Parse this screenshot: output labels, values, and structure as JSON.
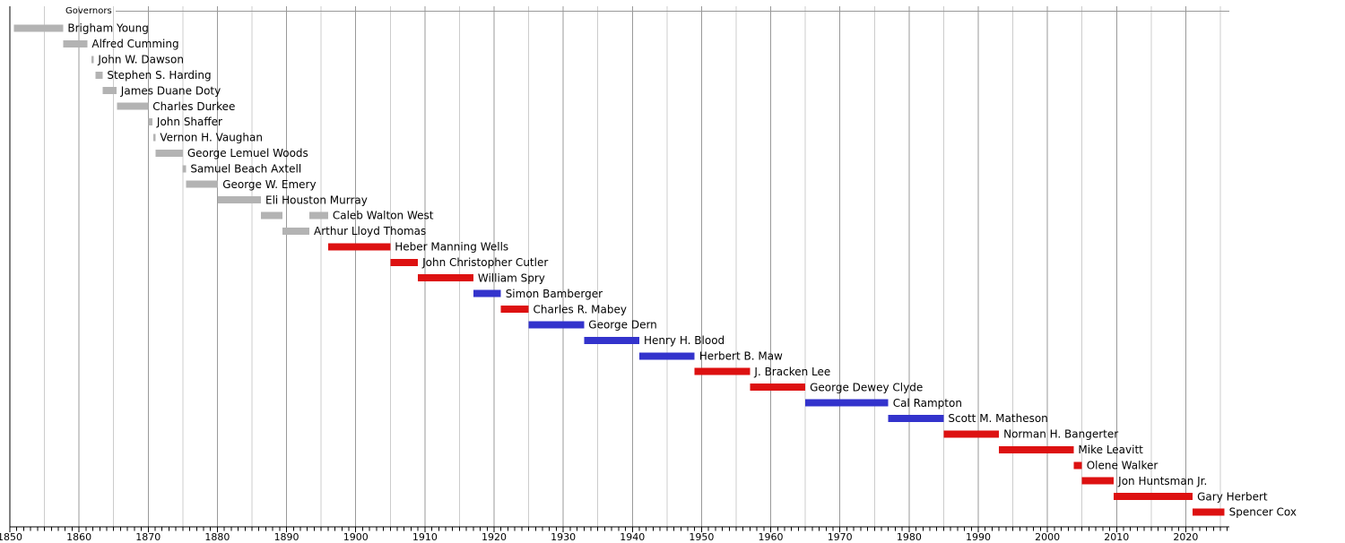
{
  "title": "Governors",
  "chart_data": {
    "type": "bar",
    "subtype": "gantt-timeline",
    "title": "Governors",
    "description_colors": {
      "territorial": "#b3b3b3",
      "republican": "#dd1111",
      "democratic": "#3333cc"
    },
    "grid": {
      "minor_color": "#cccccc",
      "major_color": "#999999",
      "top_line_color": "#999999",
      "axis_color": "#000000",
      "gridline_interval_years": 5,
      "major_gridline_interval_years": 10,
      "minor_tick_interval_years": 1
    },
    "x_axis": {
      "range": [
        1850,
        2026.3
      ],
      "tick_labels": [
        "1850",
        "1860",
        "1870",
        "1880",
        "1890",
        "1900",
        "1910",
        "1920",
        "1930",
        "1940",
        "1950",
        "1960",
        "1970",
        "1980",
        "1990",
        "2000",
        "2010",
        "2020"
      ],
      "tick_label_interval": 10
    },
    "legend": null,
    "governors": [
      {
        "name": "Brigham Young",
        "party": "territorial",
        "periods": [
          [
            1850.6,
            1857.7
          ]
        ]
      },
      {
        "name": "Alfred Cumming",
        "party": "territorial",
        "periods": [
          [
            1857.7,
            1861.2
          ]
        ]
      },
      {
        "name": "John W. Dawson",
        "party": "territorial",
        "periods": [
          [
            1861.8,
            1862.1
          ]
        ]
      },
      {
        "name": "Stephen S. Harding",
        "party": "territorial",
        "periods": [
          [
            1862.4,
            1863.4
          ]
        ]
      },
      {
        "name": "James Duane Doty",
        "party": "territorial",
        "periods": [
          [
            1863.4,
            1865.4
          ]
        ]
      },
      {
        "name": "Charles Durkee",
        "party": "territorial",
        "periods": [
          [
            1865.5,
            1870.0
          ]
        ]
      },
      {
        "name": "John Shaffer",
        "party": "territorial",
        "periods": [
          [
            1870.0,
            1870.6
          ]
        ]
      },
      {
        "name": "Vernon H. Vaughan",
        "party": "territorial",
        "periods": [
          [
            1870.75,
            1871.05
          ]
        ]
      },
      {
        "name": "George Lemuel Woods",
        "party": "territorial",
        "periods": [
          [
            1871.05,
            1875.0
          ]
        ]
      },
      {
        "name": "Samuel Beach Axtell",
        "party": "territorial",
        "periods": [
          [
            1874.95,
            1875.45
          ]
        ]
      },
      {
        "name": "George W. Emery",
        "party": "territorial",
        "periods": [
          [
            1875.45,
            1880.1
          ]
        ]
      },
      {
        "name": "Eli Houston Murray",
        "party": "territorial",
        "periods": [
          [
            1880.1,
            1886.3
          ]
        ]
      },
      {
        "name": "Caleb Walton West",
        "party": "territorial",
        "periods": [
          [
            1886.3,
            1889.4
          ],
          [
            1893.3,
            1896.0
          ]
        ]
      },
      {
        "name": "Arthur Lloyd Thomas",
        "party": "territorial",
        "periods": [
          [
            1889.4,
            1893.3
          ]
        ]
      },
      {
        "name": "Heber Manning Wells",
        "party": "republican",
        "periods": [
          [
            1896.0,
            1905.0
          ]
        ]
      },
      {
        "name": "John Christopher Cutler",
        "party": "republican",
        "periods": [
          [
            1905.0,
            1909.0
          ]
        ]
      },
      {
        "name": "William Spry",
        "party": "republican",
        "periods": [
          [
            1909.0,
            1917.0
          ]
        ]
      },
      {
        "name": "Simon Bamberger",
        "party": "democratic",
        "periods": [
          [
            1917.0,
            1921.0
          ]
        ]
      },
      {
        "name": "Charles R. Mabey",
        "party": "republican",
        "periods": [
          [
            1921.0,
            1925.0
          ]
        ]
      },
      {
        "name": "George Dern",
        "party": "democratic",
        "periods": [
          [
            1925.0,
            1933.0
          ]
        ]
      },
      {
        "name": "Henry H. Blood",
        "party": "democratic",
        "periods": [
          [
            1933.0,
            1941.0
          ]
        ]
      },
      {
        "name": "Herbert B. Maw",
        "party": "democratic",
        "periods": [
          [
            1941.0,
            1949.0
          ]
        ]
      },
      {
        "name": "J. Bracken Lee",
        "party": "republican",
        "periods": [
          [
            1949.0,
            1957.0
          ]
        ]
      },
      {
        "name": "George Dewey Clyde",
        "party": "republican",
        "periods": [
          [
            1957.0,
            1965.0
          ]
        ]
      },
      {
        "name": "Cal Rampton",
        "party": "democratic",
        "periods": [
          [
            1965.0,
            1977.0
          ]
        ]
      },
      {
        "name": "Scott M. Matheson",
        "party": "democratic",
        "periods": [
          [
            1977.0,
            1985.0
          ]
        ]
      },
      {
        "name": "Norman H. Bangerter",
        "party": "republican",
        "periods": [
          [
            1985.0,
            1993.0
          ]
        ]
      },
      {
        "name": "Mike Leavitt",
        "party": "republican",
        "periods": [
          [
            1993.0,
            2003.8
          ]
        ]
      },
      {
        "name": "Olene Walker",
        "party": "republican",
        "periods": [
          [
            2003.8,
            2005.0
          ]
        ]
      },
      {
        "name": "Jon Huntsman Jr.",
        "party": "republican",
        "periods": [
          [
            2005.0,
            2009.6
          ]
        ]
      },
      {
        "name": "Gary Herbert",
        "party": "republican",
        "periods": [
          [
            2009.6,
            2021.0
          ]
        ]
      },
      {
        "name": "Spencer Cox",
        "party": "republican",
        "periods": [
          [
            2021.0,
            2025.6
          ]
        ]
      }
    ]
  }
}
